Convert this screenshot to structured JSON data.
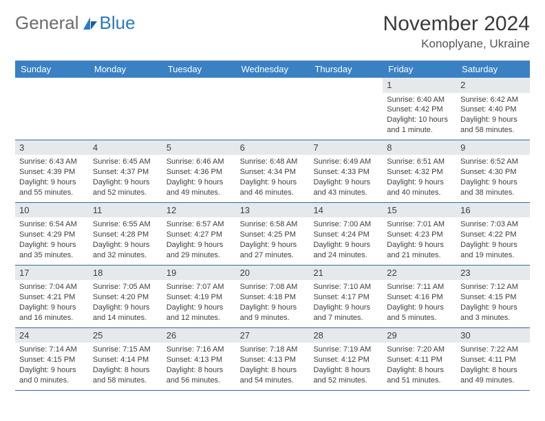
{
  "logo": {
    "text1": "General",
    "text2": "Blue"
  },
  "title": "November 2024",
  "location": "Konoplyane, Ukraine",
  "weekday_labels": [
    "Sunday",
    "Monday",
    "Tuesday",
    "Wednesday",
    "Thursday",
    "Friday",
    "Saturday"
  ],
  "colors": {
    "header_bg": "#3a81c4",
    "header_text": "#ffffff",
    "numrow_bg": "#e5e9ec",
    "divider": "#2f6aa5",
    "body_text": "#3d3d3d",
    "logo_gray": "#6b6b6b",
    "logo_blue": "#2a7abf"
  },
  "typography": {
    "title_fontsize": 30,
    "location_fontsize": 17,
    "weekday_fontsize": 13,
    "daynum_fontsize": 13,
    "body_fontsize": 11
  },
  "weeks": [
    [
      {
        "n": "",
        "empty": true
      },
      {
        "n": "",
        "empty": true
      },
      {
        "n": "",
        "empty": true
      },
      {
        "n": "",
        "empty": true
      },
      {
        "n": "",
        "empty": true
      },
      {
        "n": "1",
        "sunrise": "Sunrise: 6:40 AM",
        "sunset": "Sunset: 4:42 PM",
        "day1": "Daylight: 10 hours",
        "day2": "and 1 minute."
      },
      {
        "n": "2",
        "sunrise": "Sunrise: 6:42 AM",
        "sunset": "Sunset: 4:40 PM",
        "day1": "Daylight: 9 hours",
        "day2": "and 58 minutes."
      }
    ],
    [
      {
        "n": "3",
        "sunrise": "Sunrise: 6:43 AM",
        "sunset": "Sunset: 4:39 PM",
        "day1": "Daylight: 9 hours",
        "day2": "and 55 minutes."
      },
      {
        "n": "4",
        "sunrise": "Sunrise: 6:45 AM",
        "sunset": "Sunset: 4:37 PM",
        "day1": "Daylight: 9 hours",
        "day2": "and 52 minutes."
      },
      {
        "n": "5",
        "sunrise": "Sunrise: 6:46 AM",
        "sunset": "Sunset: 4:36 PM",
        "day1": "Daylight: 9 hours",
        "day2": "and 49 minutes."
      },
      {
        "n": "6",
        "sunrise": "Sunrise: 6:48 AM",
        "sunset": "Sunset: 4:34 PM",
        "day1": "Daylight: 9 hours",
        "day2": "and 46 minutes."
      },
      {
        "n": "7",
        "sunrise": "Sunrise: 6:49 AM",
        "sunset": "Sunset: 4:33 PM",
        "day1": "Daylight: 9 hours",
        "day2": "and 43 minutes."
      },
      {
        "n": "8",
        "sunrise": "Sunrise: 6:51 AM",
        "sunset": "Sunset: 4:32 PM",
        "day1": "Daylight: 9 hours",
        "day2": "and 40 minutes."
      },
      {
        "n": "9",
        "sunrise": "Sunrise: 6:52 AM",
        "sunset": "Sunset: 4:30 PM",
        "day1": "Daylight: 9 hours",
        "day2": "and 38 minutes."
      }
    ],
    [
      {
        "n": "10",
        "sunrise": "Sunrise: 6:54 AM",
        "sunset": "Sunset: 4:29 PM",
        "day1": "Daylight: 9 hours",
        "day2": "and 35 minutes."
      },
      {
        "n": "11",
        "sunrise": "Sunrise: 6:55 AM",
        "sunset": "Sunset: 4:28 PM",
        "day1": "Daylight: 9 hours",
        "day2": "and 32 minutes."
      },
      {
        "n": "12",
        "sunrise": "Sunrise: 6:57 AM",
        "sunset": "Sunset: 4:27 PM",
        "day1": "Daylight: 9 hours",
        "day2": "and 29 minutes."
      },
      {
        "n": "13",
        "sunrise": "Sunrise: 6:58 AM",
        "sunset": "Sunset: 4:25 PM",
        "day1": "Daylight: 9 hours",
        "day2": "and 27 minutes."
      },
      {
        "n": "14",
        "sunrise": "Sunrise: 7:00 AM",
        "sunset": "Sunset: 4:24 PM",
        "day1": "Daylight: 9 hours",
        "day2": "and 24 minutes."
      },
      {
        "n": "15",
        "sunrise": "Sunrise: 7:01 AM",
        "sunset": "Sunset: 4:23 PM",
        "day1": "Daylight: 9 hours",
        "day2": "and 21 minutes."
      },
      {
        "n": "16",
        "sunrise": "Sunrise: 7:03 AM",
        "sunset": "Sunset: 4:22 PM",
        "day1": "Daylight: 9 hours",
        "day2": "and 19 minutes."
      }
    ],
    [
      {
        "n": "17",
        "sunrise": "Sunrise: 7:04 AM",
        "sunset": "Sunset: 4:21 PM",
        "day1": "Daylight: 9 hours",
        "day2": "and 16 minutes."
      },
      {
        "n": "18",
        "sunrise": "Sunrise: 7:05 AM",
        "sunset": "Sunset: 4:20 PM",
        "day1": "Daylight: 9 hours",
        "day2": "and 14 minutes."
      },
      {
        "n": "19",
        "sunrise": "Sunrise: 7:07 AM",
        "sunset": "Sunset: 4:19 PM",
        "day1": "Daylight: 9 hours",
        "day2": "and 12 minutes."
      },
      {
        "n": "20",
        "sunrise": "Sunrise: 7:08 AM",
        "sunset": "Sunset: 4:18 PM",
        "day1": "Daylight: 9 hours",
        "day2": "and 9 minutes."
      },
      {
        "n": "21",
        "sunrise": "Sunrise: 7:10 AM",
        "sunset": "Sunset: 4:17 PM",
        "day1": "Daylight: 9 hours",
        "day2": "and 7 minutes."
      },
      {
        "n": "22",
        "sunrise": "Sunrise: 7:11 AM",
        "sunset": "Sunset: 4:16 PM",
        "day1": "Daylight: 9 hours",
        "day2": "and 5 minutes."
      },
      {
        "n": "23",
        "sunrise": "Sunrise: 7:12 AM",
        "sunset": "Sunset: 4:15 PM",
        "day1": "Daylight: 9 hours",
        "day2": "and 3 minutes."
      }
    ],
    [
      {
        "n": "24",
        "sunrise": "Sunrise: 7:14 AM",
        "sunset": "Sunset: 4:15 PM",
        "day1": "Daylight: 9 hours",
        "day2": "and 0 minutes."
      },
      {
        "n": "25",
        "sunrise": "Sunrise: 7:15 AM",
        "sunset": "Sunset: 4:14 PM",
        "day1": "Daylight: 8 hours",
        "day2": "and 58 minutes."
      },
      {
        "n": "26",
        "sunrise": "Sunrise: 7:16 AM",
        "sunset": "Sunset: 4:13 PM",
        "day1": "Daylight: 8 hours",
        "day2": "and 56 minutes."
      },
      {
        "n": "27",
        "sunrise": "Sunrise: 7:18 AM",
        "sunset": "Sunset: 4:13 PM",
        "day1": "Daylight: 8 hours",
        "day2": "and 54 minutes."
      },
      {
        "n": "28",
        "sunrise": "Sunrise: 7:19 AM",
        "sunset": "Sunset: 4:12 PM",
        "day1": "Daylight: 8 hours",
        "day2": "and 52 minutes."
      },
      {
        "n": "29",
        "sunrise": "Sunrise: 7:20 AM",
        "sunset": "Sunset: 4:11 PM",
        "day1": "Daylight: 8 hours",
        "day2": "and 51 minutes."
      },
      {
        "n": "30",
        "sunrise": "Sunrise: 7:22 AM",
        "sunset": "Sunset: 4:11 PM",
        "day1": "Daylight: 8 hours",
        "day2": "and 49 minutes."
      }
    ]
  ]
}
